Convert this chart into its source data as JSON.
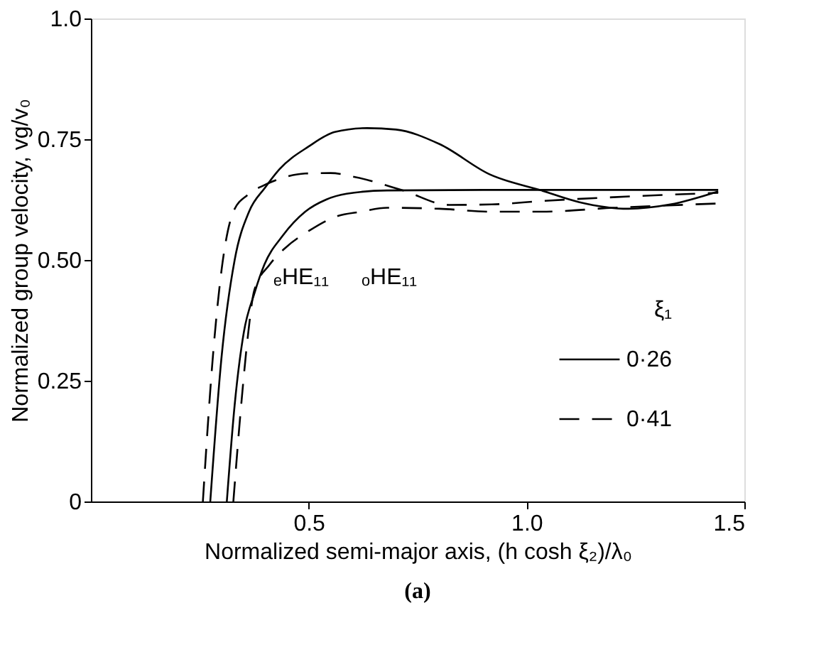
{
  "chart_data": {
    "type": "line",
    "title": "(a)",
    "xlabel": "Normalized semi-major axis, (h cosh ξ₂)/λ₀",
    "ylabel": "Normalized group velocity, vg/v₀",
    "legend_title": "ξ₁",
    "legend": "bottom right",
    "grid": false,
    "marker": "none",
    "xlim": [
      0,
      1.5
    ],
    "xticks": [
      0.5,
      {
        "value": 1.0,
        "label": "1.0"
      },
      1.5
    ],
    "ylim": [
      0,
      1.0
    ],
    "yticks": [
      0,
      0.25,
      {
        "value": 0.5,
        "label": "0.50"
      },
      0.75,
      {
        "value": 1.0,
        "label": "1.0"
      }
    ],
    "annotations": [
      "ₑHE₁₁",
      "ₒHE₁₁"
    ],
    "series": [
      {
        "name": "0·26",
        "color": "#000000",
        "line_style": "solid",
        "x": [
          0.274,
          0.3,
          0.33,
          0.363,
          0.4,
          0.433,
          0.5,
          0.56,
          0.634,
          0.7,
          0.8,
          0.916,
          1.034,
          1.12,
          1.234,
          1.33,
          1.44
        ],
        "values": [
          0,
          0.3,
          0.5,
          0.6,
          0.65,
          0.688,
          0.735,
          0.765,
          0.773,
          0.77,
          0.74,
          0.677,
          0.644,
          0.62,
          0.606,
          0.615,
          0.642
        ]
      },
      {
        "color": "#000000",
        "line_style": "solid",
        "x": [
          0.312,
          0.33,
          0.351,
          0.375,
          0.398,
          0.44,
          0.492,
          0.54,
          0.587,
          0.68,
          0.9,
          1.2,
          1.44
        ],
        "values": [
          0,
          0.2,
          0.35,
          0.43,
          0.49,
          0.55,
          0.6,
          0.625,
          0.637,
          0.644,
          0.645,
          0.645,
          0.645
        ]
      },
      {
        "name": "0·41",
        "color": "#000000",
        "line_style": "dashed",
        "x": [
          0.257,
          0.28,
          0.3,
          0.327,
          0.36,
          0.398,
          0.44,
          0.492,
          0.55,
          0.61,
          0.716,
          0.822,
          0.92,
          1.034,
          1.2,
          1.44
        ],
        "values": [
          0,
          0.3,
          0.48,
          0.6,
          0.635,
          0.655,
          0.67,
          0.679,
          0.68,
          0.671,
          0.644,
          0.614,
          0.615,
          0.622,
          0.63,
          0.639
        ]
      },
      {
        "color": "#000000",
        "line_style": "dashed",
        "x": [
          0.327,
          0.345,
          0.36,
          0.375,
          0.41,
          0.445,
          0.5,
          0.563,
          0.62,
          0.68,
          0.8,
          0.916,
          1.034,
          1.2,
          1.44
        ],
        "values": [
          0,
          0.2,
          0.34,
          0.437,
          0.49,
          0.524,
          0.56,
          0.59,
          0.6,
          0.608,
          0.606,
          0.6,
          0.6,
          0.608,
          0.617
        ]
      }
    ]
  }
}
